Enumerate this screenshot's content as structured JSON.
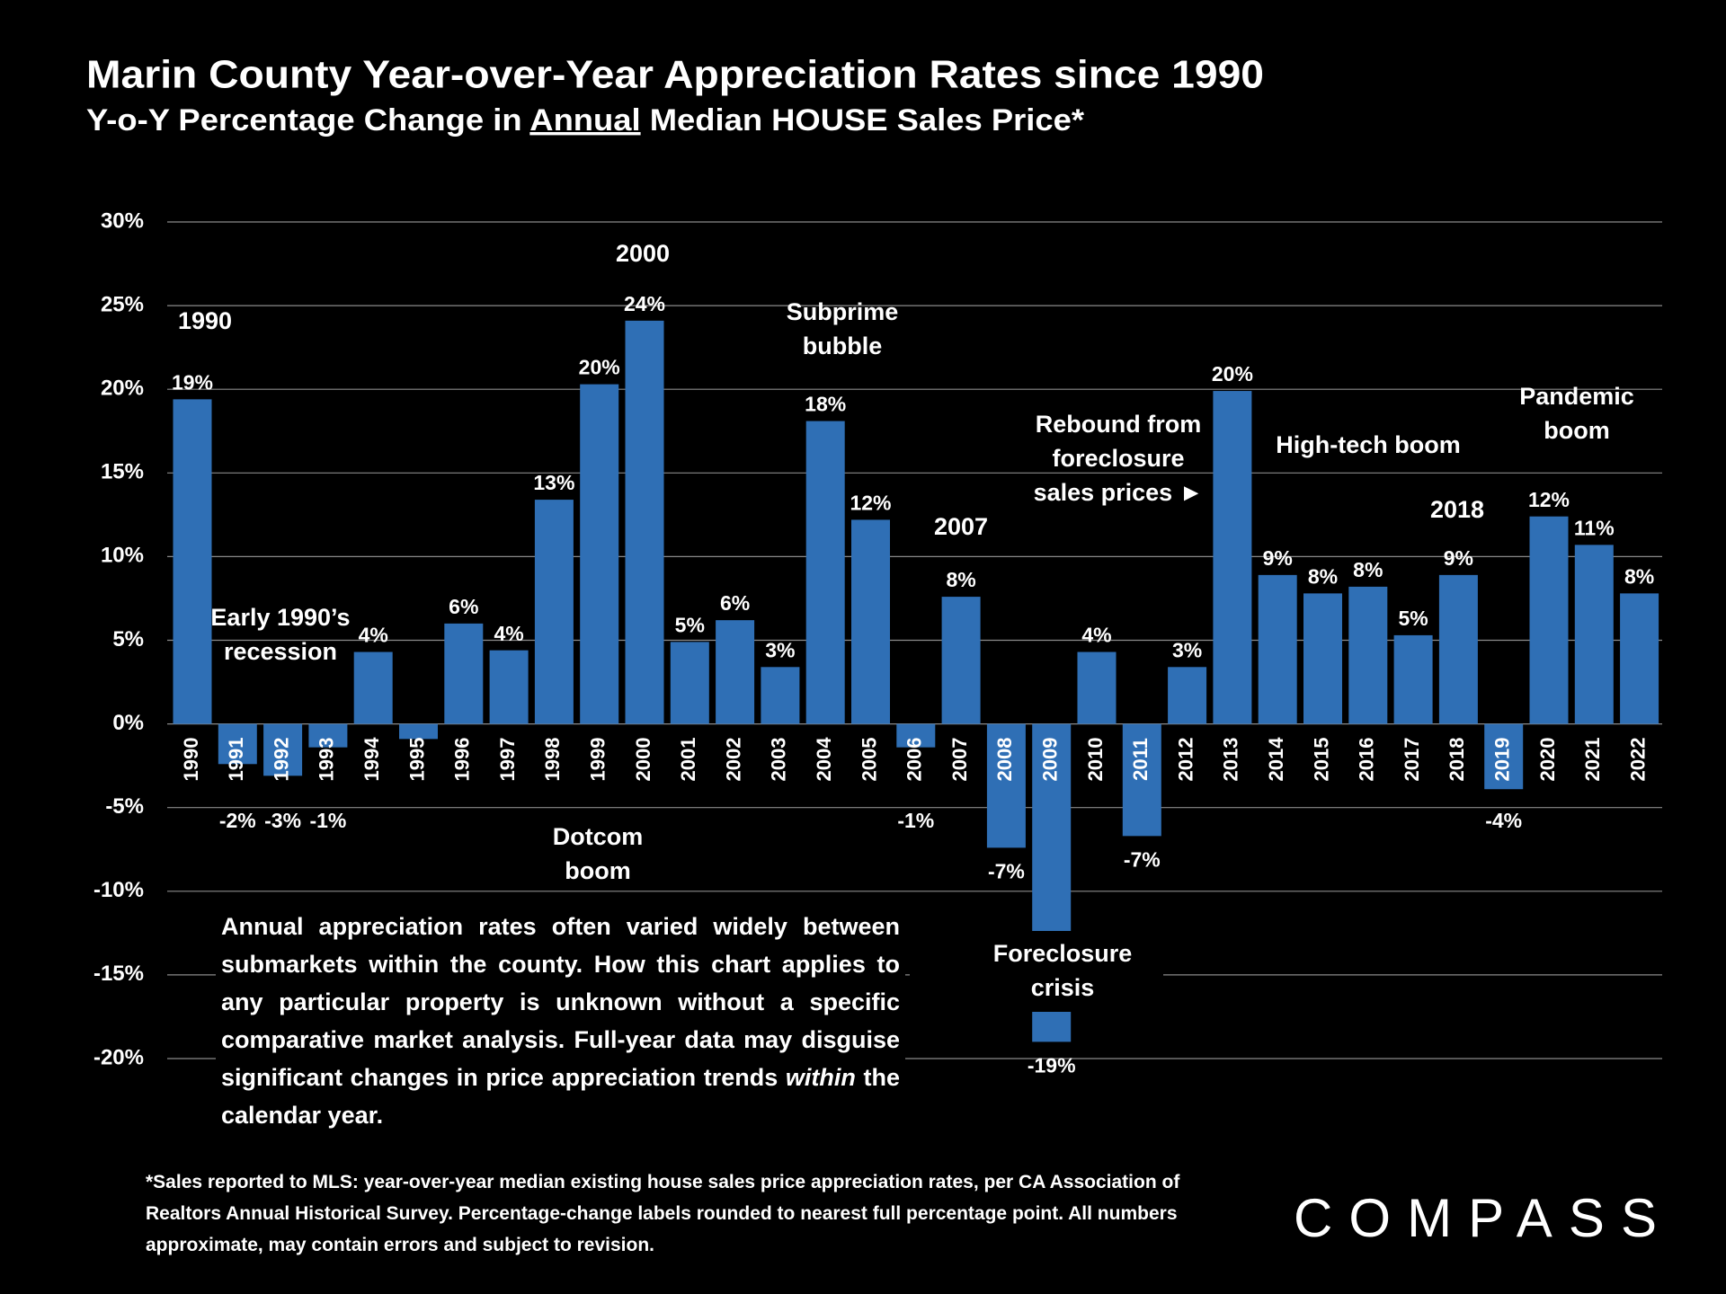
{
  "chart_data": {
    "type": "bar",
    "title": "Marin County Year-over-Year Appreciation Rates since 1990",
    "subtitle_parts": [
      "Y-o-Y Percentage Change in ",
      "Annual",
      " Median HOUSE Sales Price*"
    ],
    "categories": [
      "1990",
      "1991",
      "1992",
      "1993",
      "1994",
      "1995",
      "1996",
      "1997",
      "1998",
      "1999",
      "2000",
      "2001",
      "2002",
      "2003",
      "2004",
      "2005",
      "2006",
      "2007",
      "2008",
      "2009",
      "2010",
      "2011",
      "2012",
      "2013",
      "2014",
      "2015",
      "2016",
      "2017",
      "2018",
      "2019",
      "2020",
      "2021",
      "2022"
    ],
    "values": [
      19.4,
      -2.4,
      -3.1,
      -1.4,
      4.3,
      -0.9,
      6.0,
      4.4,
      13.4,
      20.3,
      24.1,
      4.9,
      6.2,
      3.4,
      18.1,
      12.2,
      -1.4,
      7.6,
      -7.4,
      -19,
      4.3,
      -6.7,
      3.4,
      19.9,
      8.9,
      7.8,
      8.2,
      5.3,
      8.9,
      -3.9,
      12.4,
      10.7,
      7.8
    ],
    "value_labels": [
      "19%",
      "-2%",
      "-3%",
      "-1%",
      "4%",
      null,
      "6%",
      "4%",
      "13%",
      "20%",
      "24%",
      "5%",
      "6%",
      "3%",
      "18%",
      "12%",
      "-1%",
      "8%",
      "-7%",
      "-19%",
      "4%",
      "-7%",
      "3%",
      "20%",
      "9%",
      "8%",
      "8%",
      "5%",
      "9%",
      "-4%",
      "12%",
      "11%",
      "8%"
    ],
    "color": "#2f6fb5",
    "ylim": [
      -20,
      30
    ],
    "yticks": [
      {
        "value": -20,
        "label": "-20%"
      },
      {
        "value": -15,
        "label": "-15%"
      },
      {
        "value": -10,
        "label": "-10%"
      },
      {
        "value": -5,
        "label": "-5%"
      },
      {
        "value": 0,
        "label": "0%"
      },
      {
        "value": 5,
        "label": "5%"
      },
      {
        "value": 10,
        "label": "10%"
      },
      {
        "value": 15,
        "label": "15%"
      },
      {
        "value": 20,
        "label": "20%"
      },
      {
        "value": 25,
        "label": "25%"
      },
      {
        "value": 30,
        "label": "30%"
      }
    ],
    "grid": true,
    "annotations": [
      {
        "lines": [
          "1990"
        ]
      },
      {
        "lines": [
          "Early 1990’s",
          "recession"
        ]
      },
      {
        "lines": [
          "2000"
        ]
      },
      {
        "lines": [
          "Dotcom",
          "boom"
        ]
      },
      {
        "lines": [
          "Subprime",
          "bubble"
        ]
      },
      {
        "lines": [
          "2007"
        ]
      },
      {
        "lines": [
          "Foreclosure",
          "crisis"
        ]
      },
      {
        "lines": [
          "Rebound from",
          "foreclosure",
          "sales prices ►"
        ]
      },
      {
        "lines": [
          "High-tech boom"
        ]
      },
      {
        "lines": [
          "2018"
        ]
      },
      {
        "lines": [
          "Pandemic",
          "boom"
        ]
      }
    ],
    "note_parts": [
      "Annual appreciation rates often varied widely between submarkets within the county. How this chart applies to any particular property is unknown without a specific comparative market analysis. Full-year data may disguise significant changes in price appreciation trends ",
      "within",
      " the calendar year."
    ],
    "footnote": "*Sales reported to MLS: year-over-year median existing house sales price appreciation rates, per CA Association of Realtors Annual Historical Survey. Percentage-change labels rounded to nearest full percentage point. All numbers approximate, may contain errors and subject to revision.",
    "logo": "COMPASS"
  }
}
